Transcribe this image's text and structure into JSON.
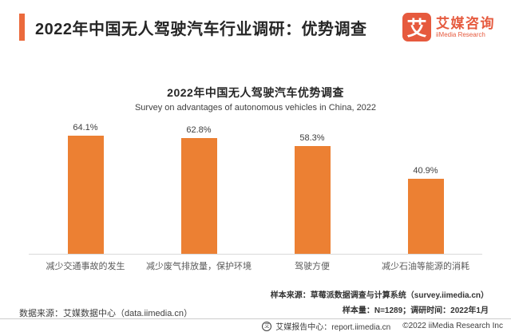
{
  "header": {
    "title": "2022年中国无人驾驶汽车行业调研：优势调查",
    "logo": {
      "glyph": "艾",
      "name_cn": "艾媒咨询",
      "name_en": "iiMedia Research"
    }
  },
  "chart_data": {
    "type": "bar",
    "title": "2022年中国无人驾驶汽车优势调查",
    "subtitle": "Survey on advantages of autonomous vehicles in China, 2022",
    "categories": [
      "减少交通事故的发生",
      "减少废气排放量，保护环境",
      "驾驶方便",
      "减少石油等能源的消耗"
    ],
    "values": [
      64.1,
      62.8,
      58.3,
      40.9
    ],
    "value_labels": [
      "64.1%",
      "62.8%",
      "58.3%",
      "40.9%"
    ],
    "unit": "%",
    "ylim": [
      0,
      70
    ],
    "grid": false,
    "legend": "none",
    "bar_color": "#EC8033"
  },
  "footer": {
    "data_source": "数据来源：艾媒数据中心（data.iimedia.cn）",
    "sample_source": "样本来源：草莓派数据调查与计算系统（survey.iimedia.cn）",
    "sample_info": "样本量：N=1289；调研时间：2022年1月",
    "badge_glyph": "艾",
    "report_center": "艾媒报告中心：report.iimedia.cn",
    "copyright": "©2022  iiMedia Research Inc"
  },
  "colors": {
    "accent_orange": "#EB6A3C",
    "logo_orange": "#E65A3E",
    "bar_orange": "#EC8033",
    "axis_gray": "#D9D9D9",
    "title_dark": "#262626"
  }
}
